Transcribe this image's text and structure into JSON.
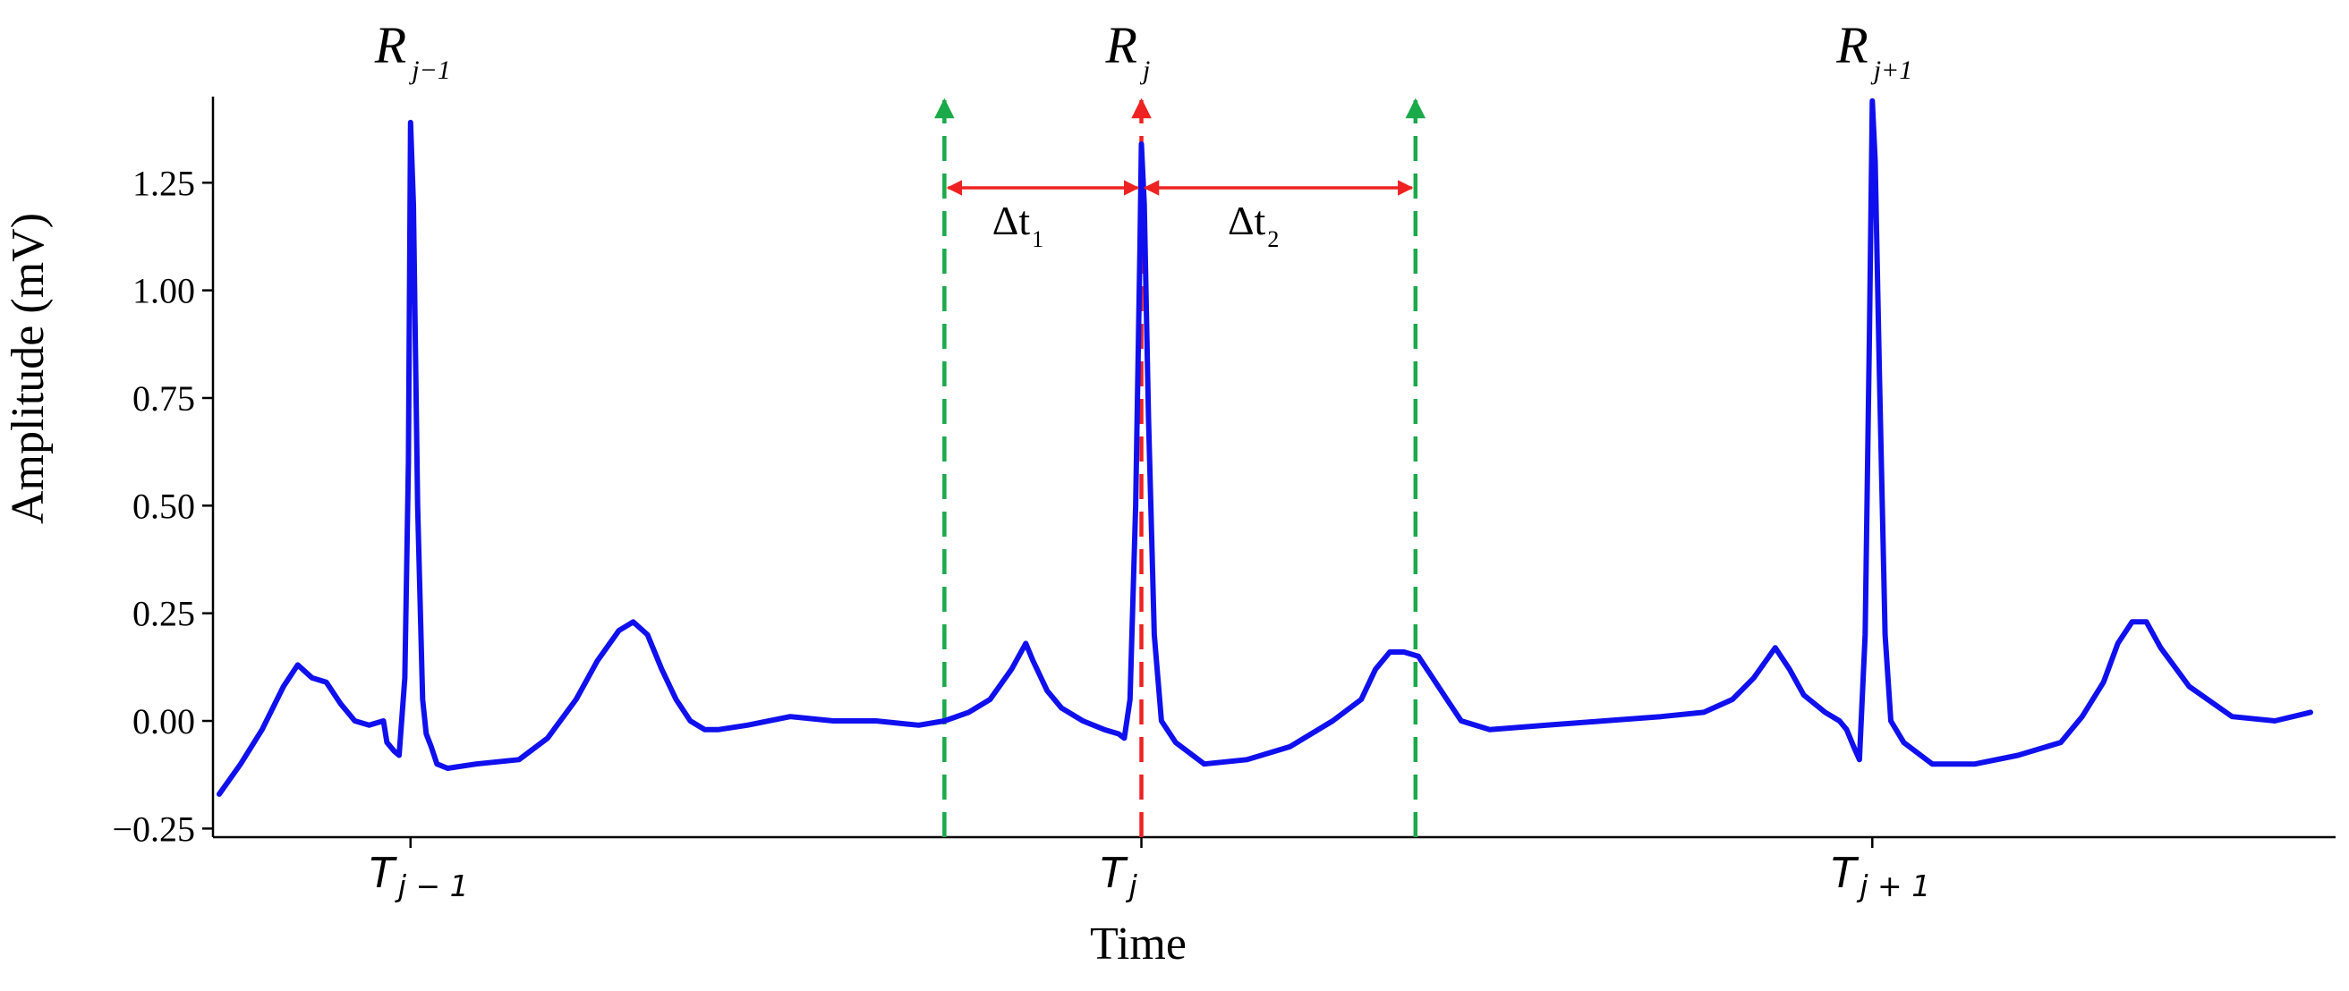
{
  "chart_data": {
    "type": "line",
    "xlabel": "Time",
    "ylabel": "Amplitude (mV)",
    "ylim": [
      -0.27,
      1.45
    ],
    "xlim": [
      0,
      2.94
    ],
    "yticks": [
      -0.25,
      0.0,
      0.25,
      0.5,
      0.75,
      1.0,
      1.25
    ],
    "ytick_labels": [
      "−0.25",
      "0.00",
      "0.25",
      "0.50",
      "0.75",
      "1.00",
      "1.25"
    ],
    "grid": false,
    "line_color": "#1010ee",
    "xticks": [
      {
        "x": 0.268,
        "main": "T",
        "sub": "j − 1"
      },
      {
        "x": 1.292,
        "main": "T",
        "sub": "j"
      },
      {
        "x": 2.316,
        "main": "T",
        "sub": "j + 1"
      }
    ],
    "r_labels": [
      {
        "x": 0.268,
        "main": "R",
        "sub": "j−1"
      },
      {
        "x": 1.292,
        "main": "R",
        "sub": "j"
      },
      {
        "x": 2.316,
        "main": "R",
        "sub": "j+1"
      }
    ],
    "markers": [
      {
        "name": "window-start",
        "x": 1.016,
        "color": "#1aaa4a",
        "style": "dashed"
      },
      {
        "name": "r-peak",
        "x": 1.292,
        "color": "#ee2222",
        "style": "dashed"
      },
      {
        "name": "window-end",
        "x": 1.676,
        "color": "#1aaa4a",
        "style": "dashed"
      }
    ],
    "intervals": [
      {
        "name": "dt1",
        "from": 1.016,
        "to": 1.292,
        "y": 1.25,
        "label_main": "Δt",
        "label_sub": "1",
        "color": "#ee2222"
      },
      {
        "name": "dt2",
        "from": 1.292,
        "to": 1.676,
        "y": 1.25,
        "label_main": "Δt",
        "label_sub": "2",
        "color": "#ee2222"
      }
    ],
    "series": [
      {
        "x": [
          0.0,
          0.03,
          0.06,
          0.09,
          0.11,
          0.13,
          0.15,
          0.17,
          0.19,
          0.21,
          0.23,
          0.235,
          0.245,
          0.252,
          0.26,
          0.265,
          0.268,
          0.272,
          0.278,
          0.285,
          0.29,
          0.297,
          0.305,
          0.32,
          0.36,
          0.42,
          0.46,
          0.5,
          0.53,
          0.56,
          0.58,
          0.6,
          0.62,
          0.64,
          0.66,
          0.68,
          0.7,
          0.74,
          0.8,
          0.86,
          0.92,
          0.98,
          1.016,
          1.05,
          1.08,
          1.11,
          1.13,
          1.14,
          1.16,
          1.18,
          1.21,
          1.24,
          1.26,
          1.268,
          1.276,
          1.284,
          1.29,
          1.292,
          1.296,
          1.302,
          1.31,
          1.32,
          1.34,
          1.38,
          1.44,
          1.5,
          1.56,
          1.6,
          1.62,
          1.64,
          1.66,
          1.68,
          1.7,
          1.72,
          1.74,
          1.78,
          1.86,
          1.94,
          2.02,
          2.08,
          2.12,
          2.15,
          2.18,
          2.2,
          2.22,
          2.25,
          2.27,
          2.28,
          2.29,
          2.298,
          2.306,
          2.312,
          2.316,
          2.32,
          2.326,
          2.334,
          2.342,
          2.36,
          2.4,
          2.46,
          2.52,
          2.58,
          2.61,
          2.64,
          2.66,
          2.68,
          2.7,
          2.72,
          2.76,
          2.82,
          2.88,
          2.93
        ],
        "y": [
          -0.17,
          -0.1,
          -0.02,
          0.08,
          0.13,
          0.1,
          0.09,
          0.04,
          0.0,
          -0.01,
          0.0,
          -0.05,
          -0.07,
          -0.08,
          0.1,
          0.6,
          1.39,
          1.2,
          0.5,
          0.05,
          -0.03,
          -0.06,
          -0.1,
          -0.11,
          -0.1,
          -0.09,
          -0.04,
          0.05,
          0.14,
          0.21,
          0.23,
          0.2,
          0.12,
          0.05,
          0.0,
          -0.02,
          -0.02,
          -0.01,
          0.01,
          0.0,
          0.0,
          -0.01,
          0.0,
          0.02,
          0.05,
          0.12,
          0.18,
          0.14,
          0.07,
          0.03,
          0.0,
          -0.02,
          -0.03,
          -0.04,
          0.05,
          0.5,
          1.1,
          1.34,
          1.2,
          0.7,
          0.2,
          0.0,
          -0.05,
          -0.1,
          -0.09,
          -0.06,
          0.0,
          0.05,
          0.12,
          0.16,
          0.16,
          0.15,
          0.1,
          0.05,
          0.0,
          -0.02,
          -0.01,
          0.0,
          0.01,
          0.02,
          0.05,
          0.1,
          0.17,
          0.12,
          0.06,
          0.02,
          0.0,
          -0.02,
          -0.06,
          -0.09,
          0.2,
          0.9,
          1.44,
          1.3,
          0.8,
          0.2,
          0.0,
          -0.05,
          -0.1,
          -0.1,
          -0.08,
          -0.05,
          0.01,
          0.09,
          0.18,
          0.23,
          0.23,
          0.17,
          0.08,
          0.01,
          0.0,
          0.02
        ]
      }
    ]
  }
}
